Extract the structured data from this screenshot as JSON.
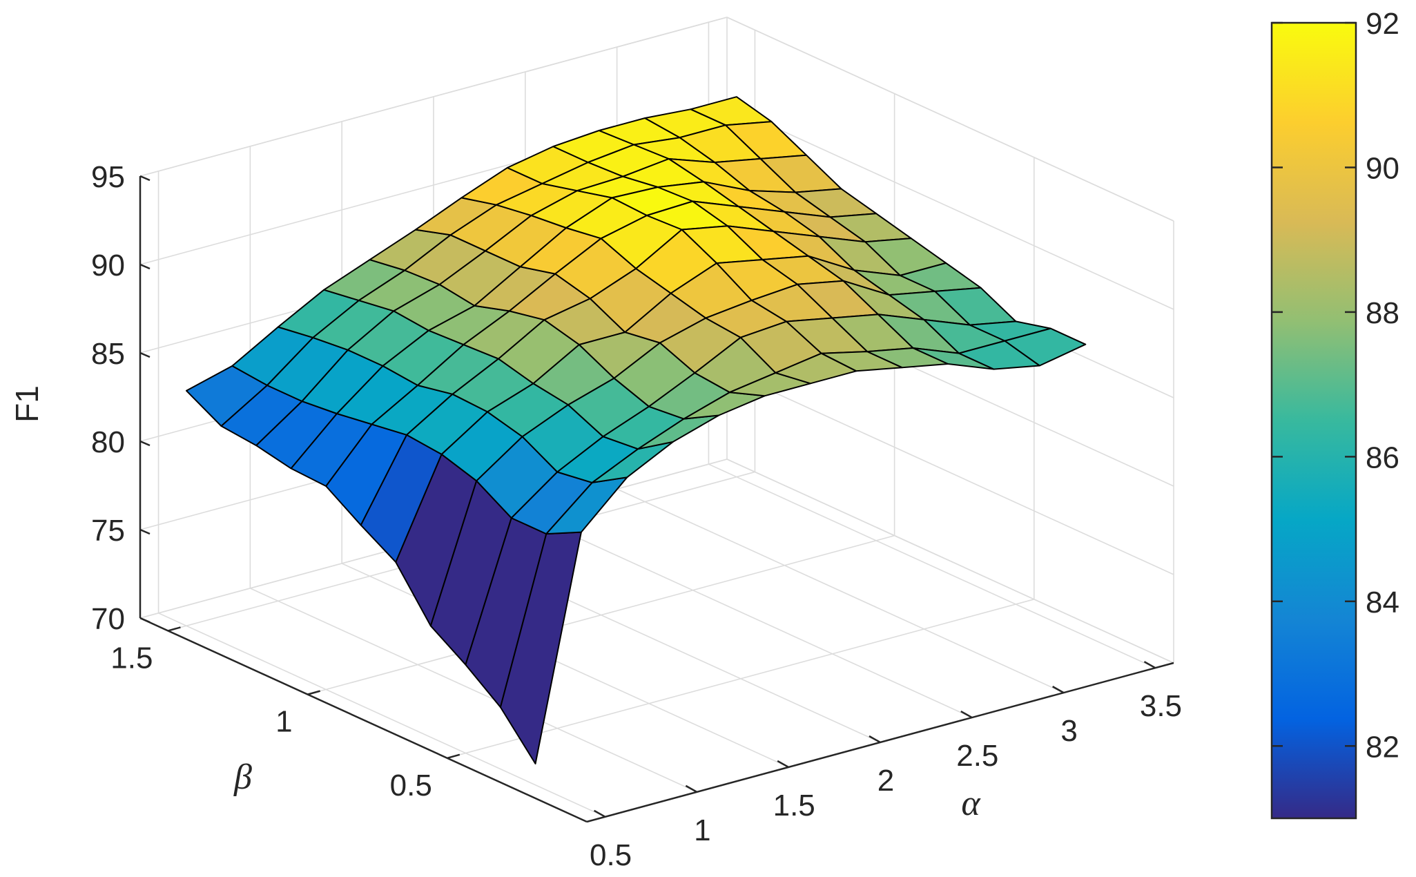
{
  "chart_data": {
    "type": "surface",
    "zlabel": "F1",
    "xlabel": "α",
    "ylabel": "β",
    "xlim": [
      0.4,
      3.6
    ],
    "ylim": [
      0.0,
      1.6
    ],
    "zlim": [
      70,
      95
    ],
    "x_ticks": [
      "0.5",
      "1",
      "1.5",
      "2",
      "2.5",
      "3",
      "3.5"
    ],
    "x_tick_values": [
      0.5,
      1,
      1.5,
      2,
      2.5,
      3,
      3.5
    ],
    "y_ticks": [
      "0.5",
      "1",
      "1.5"
    ],
    "y_tick_values": [
      0.5,
      1,
      1.5
    ],
    "z_ticks": [
      "70",
      "75",
      "80",
      "85",
      "90",
      "95"
    ],
    "z_tick_values": [
      70,
      75,
      80,
      85,
      90,
      95
    ],
    "grid": true,
    "colormap": "parula",
    "colormap_stops": [
      "#352a87",
      "#0363e1",
      "#1485d4",
      "#06a7c6",
      "#38b99e",
      "#92bf73",
      "#d9ba56",
      "#fcce2e",
      "#f9fb0e"
    ],
    "colorbar": {
      "ticks": [
        "82",
        "84",
        "86",
        "88",
        "90",
        "92"
      ],
      "tick_values": [
        82,
        84,
        86,
        88,
        90,
        92
      ],
      "range": [
        81,
        92
      ]
    },
    "alpha": [
      0.5,
      0.75,
      1.0,
      1.25,
      1.5,
      1.75,
      2.0,
      2.25,
      2.5,
      2.75,
      3.0,
      3.25,
      3.5
    ],
    "beta": [
      1.5,
      1.375,
      1.25,
      1.125,
      1.0,
      0.875,
      0.75,
      0.625,
      0.5,
      0.375,
      0.25
    ],
    "f1": [
      [
        83.3,
        84.0,
        85.5,
        86.9,
        87.9,
        88.9,
        90.0,
        91.0,
        91.5,
        91.7,
        91.7,
        91.5,
        91.5
      ],
      [
        82.2,
        83.8,
        85.8,
        87.2,
        88.2,
        89.5,
        90.5,
        91.0,
        91.5,
        91.8,
        91.5,
        91.5,
        91.0
      ],
      [
        82.0,
        83.8,
        86.0,
        87.5,
        88.3,
        89.5,
        90.8,
        91.5,
        91.6,
        91.9,
        91.0,
        90.5,
        90.0
      ],
      [
        81.6,
        84.0,
        86.0,
        87.3,
        88.0,
        89.5,
        91.0,
        92.0,
        91.9,
        91.5,
        90.3,
        89.5,
        89.0
      ],
      [
        81.5,
        84.3,
        85.8,
        87.4,
        88.6,
        90.0,
        91.3,
        91.9,
        92.0,
        91.0,
        90.0,
        89.0,
        88.5
      ],
      [
        80.2,
        84.6,
        86.2,
        87.5,
        89.0,
        89.5,
        90.5,
        92.0,
        91.5,
        90.5,
        89.5,
        88.5,
        88.0
      ],
      [
        79.0,
        84.4,
        86.1,
        87.0,
        88.5,
        88.5,
        90.0,
        91.0,
        90.5,
        90.0,
        88.5,
        87.5,
        87.5
      ],
      [
        76.3,
        83.8,
        85.6,
        86.7,
        87.5,
        88.8,
        89.5,
        89.8,
        90.0,
        89.5,
        88.0,
        87.5,
        87.0
      ],
      [
        75.0,
        82.6,
        84.5,
        85.8,
        86.8,
        88.0,
        89.3,
        89.5,
        89.0,
        88.5,
        87.5,
        86.5,
        86.0
      ],
      [
        73.5,
        82.6,
        84.8,
        86.0,
        87.0,
        87.8,
        88.2,
        88.6,
        88.0,
        87.5,
        86.5,
        86.5,
        86.5
      ],
      [
        71.2,
        83.6,
        86.0,
        87.3,
        88.1,
        88.5,
        88.5,
        88.5,
        88.0,
        87.5,
        86.5,
        86.0,
        86.5
      ]
    ]
  }
}
